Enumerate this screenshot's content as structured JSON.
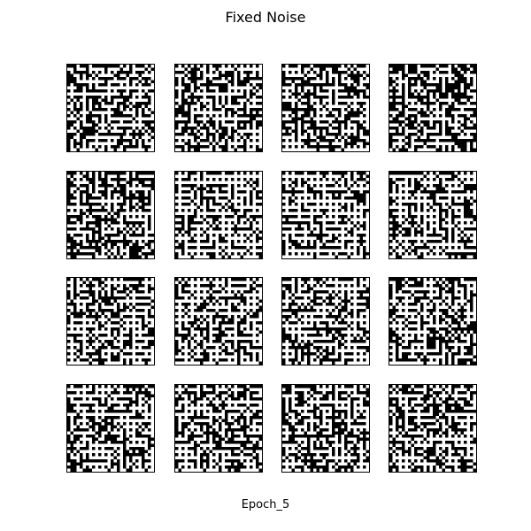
{
  "figure": {
    "title": "Fixed Noise",
    "xlabel": "Epoch_5",
    "colors": {
      "background": "#ffffff",
      "ink": "#000000",
      "frame": "#000000"
    }
  },
  "tiles": [
    {
      "name": "sample-1-1"
    },
    {
      "name": "sample-1-2"
    },
    {
      "name": "sample-1-3"
    },
    {
      "name": "sample-1-4"
    },
    {
      "name": "sample-2-1"
    },
    {
      "name": "sample-2-2"
    },
    {
      "name": "sample-2-3"
    },
    {
      "name": "sample-2-4"
    },
    {
      "name": "sample-3-1"
    },
    {
      "name": "sample-3-2"
    },
    {
      "name": "sample-3-3"
    },
    {
      "name": "sample-3-4"
    },
    {
      "name": "sample-4-1"
    },
    {
      "name": "sample-4-2"
    },
    {
      "name": "sample-4-3"
    },
    {
      "name": "sample-4-4"
    }
  ]
}
